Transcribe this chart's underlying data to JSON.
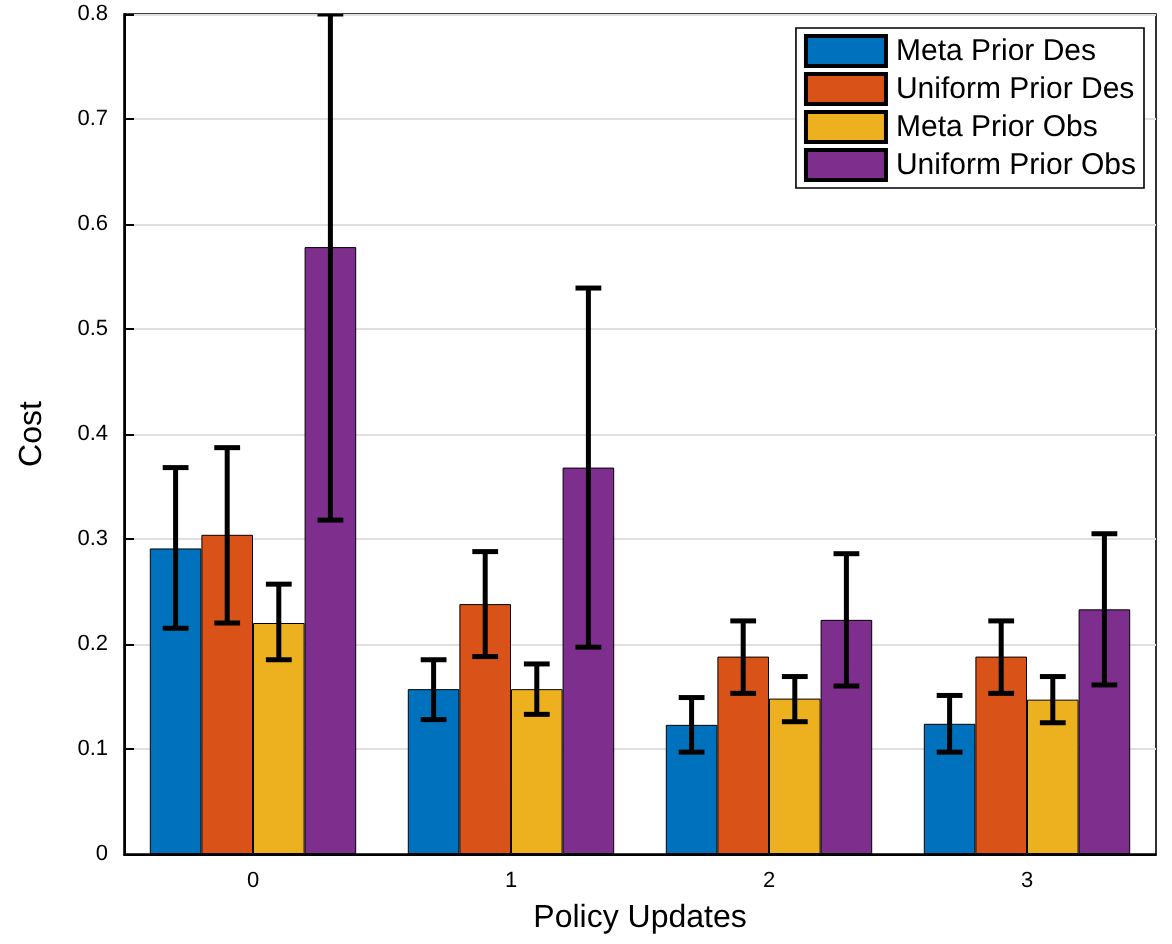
{
  "chart_data": {
    "type": "bar",
    "xlabel": "Policy Updates",
    "ylabel": "Cost",
    "categories": [
      "0",
      "1",
      "2",
      "3"
    ],
    "series": [
      {
        "name": "Meta Prior Des",
        "color": "#0072bd",
        "values": [
          0.291,
          0.157,
          0.123,
          0.124
        ],
        "errors": [
          [
            0.215,
            0.368
          ],
          [
            0.128,
            0.185
          ],
          [
            0.097,
            0.149
          ],
          [
            0.097,
            0.151
          ]
        ]
      },
      {
        "name": "Uniform Prior Des",
        "color": "#d95319",
        "values": [
          0.304,
          0.238,
          0.188,
          0.188
        ],
        "errors": [
          [
            0.22,
            0.387
          ],
          [
            0.188,
            0.288
          ],
          [
            0.153,
            0.222
          ],
          [
            0.153,
            0.222
          ]
        ]
      },
      {
        "name": "Meta Prior Obs",
        "color": "#edb120",
        "values": [
          0.22,
          0.157,
          0.148,
          0.147
        ],
        "errors": [
          [
            0.185,
            0.257
          ],
          [
            0.133,
            0.181
          ],
          [
            0.126,
            0.169
          ],
          [
            0.125,
            0.169
          ]
        ]
      },
      {
        "name": "Uniform Prior Obs",
        "color": "#7e2f8e",
        "values": [
          0.578,
          0.368,
          0.223,
          0.233
        ],
        "errors": [
          [
            0.318,
            0.8
          ],
          [
            0.197,
            0.539
          ],
          [
            0.16,
            0.286
          ],
          [
            0.161,
            0.305
          ]
        ]
      }
    ],
    "ylim": [
      0,
      0.8
    ],
    "yticks": [
      0,
      0.1,
      0.2,
      0.3,
      0.4,
      0.5,
      0.6,
      0.7,
      0.8
    ],
    "grid": "y",
    "legend": "top right"
  }
}
